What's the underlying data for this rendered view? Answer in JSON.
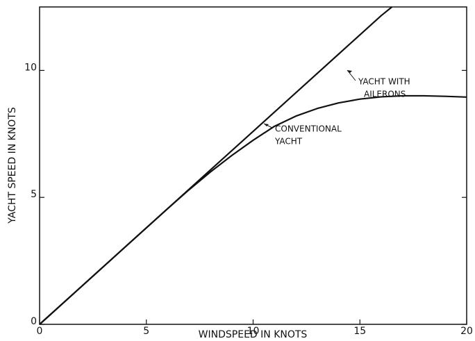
{
  "chart_data": {
    "type": "line",
    "xlabel": "WINDSPEED IN KNOTS",
    "ylabel": "YACHT SPEED IN KNOTS",
    "xlim": [
      0,
      20
    ],
    "xticks": [
      0,
      5,
      10,
      15,
      20
    ],
    "ylim": [
      0,
      12.5
    ],
    "yticks": [
      0,
      5,
      10
    ],
    "grid": false,
    "series": [
      {
        "name": "YACHT WITH AILERONS",
        "color": "#111111",
        "x": [
          0,
          2,
          4,
          6,
          8,
          10,
          12,
          14,
          16,
          16.5
        ],
        "values": [
          0,
          1.52,
          3.04,
          4.56,
          6.08,
          7.6,
          9.12,
          10.64,
          12.16,
          12.5
        ]
      },
      {
        "name": "CONVENTIONAL YACHT",
        "color": "#111111",
        "x": [
          0,
          2,
          4,
          6,
          7,
          8,
          9,
          10,
          11,
          12,
          13,
          14,
          15,
          16,
          17,
          18,
          19,
          20
        ],
        "values": [
          0,
          1.52,
          3.04,
          4.56,
          5.3,
          6.0,
          6.65,
          7.25,
          7.8,
          8.2,
          8.5,
          8.72,
          8.87,
          8.96,
          9.0,
          9.0,
          8.98,
          8.95
        ]
      }
    ],
    "annotations": [
      {
        "lines": [
          "YACHT WITH",
          "AILERONS"
        ]
      },
      {
        "lines": [
          "CONVENTIONAL",
          "YACHT"
        ]
      }
    ]
  }
}
